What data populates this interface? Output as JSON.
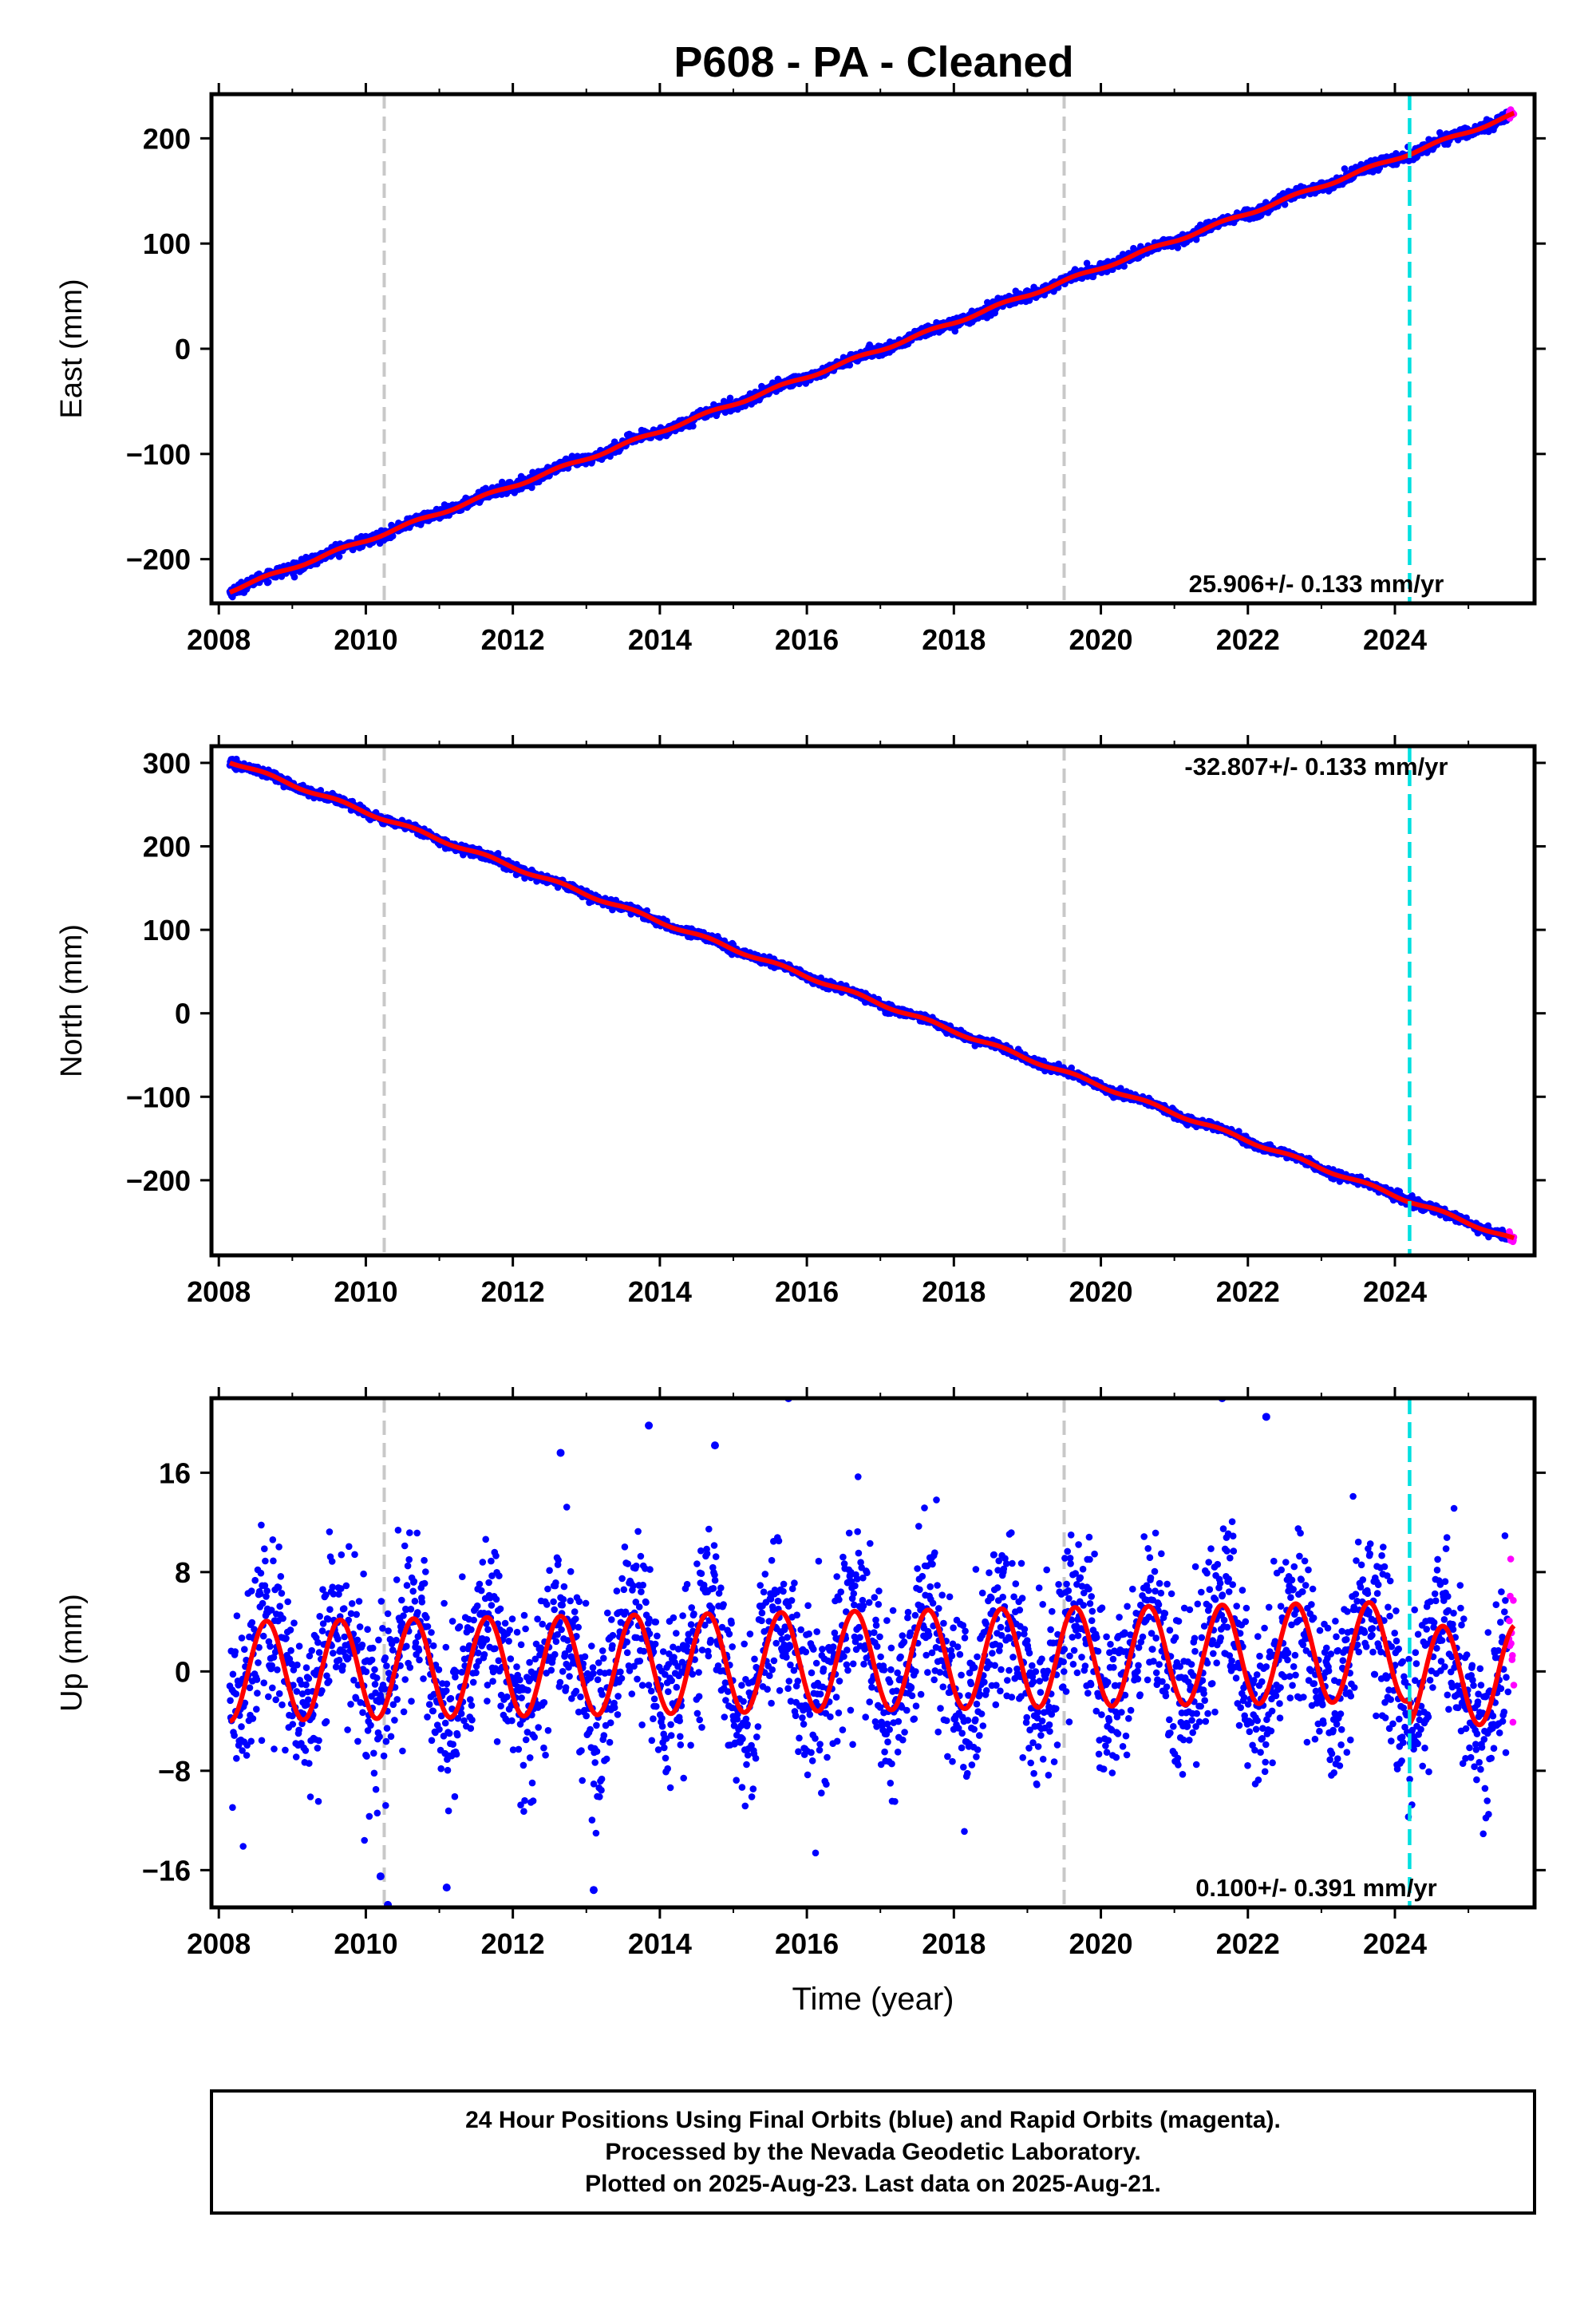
{
  "title": "P608  - PA - Cleaned",
  "colors": {
    "final_points": "#0000ff",
    "rapid_points": "#ff00ff",
    "model_line": "#ff0000",
    "event_line": "#c8c8c8",
    "antenna_line": "#00e0e0"
  },
  "chart_data": [
    {
      "type": "scatter",
      "name": "east",
      "ylabel": "East (mm)",
      "xlabel": "",
      "xlim": [
        2007.9,
        2025.9
      ],
      "ylim": [
        -242,
        242
      ],
      "xticks": [
        2008,
        2010,
        2012,
        2014,
        2016,
        2018,
        2020,
        2022,
        2024
      ],
      "xtick_labels": [
        "2008",
        "2010",
        "2012",
        "2014",
        "2016",
        "2018",
        "2020",
        "2022",
        "2024"
      ],
      "yticks": [
        -200,
        -100,
        0,
        100,
        200
      ],
      "ytick_labels": [
        "−200",
        "−100",
        "0",
        "100",
        "200"
      ],
      "rate_text": "25.906+/- 0.133 mm/yr",
      "rate_position": "bottom-right",
      "start": 2008.15,
      "end": 2025.62,
      "rapid_from": 2025.55,
      "y_start": -230,
      "slope": 25.906,
      "annual_amplitude": 1.5,
      "step_at_2024": 0,
      "noise": 2.5,
      "outliers": [],
      "event_lines": [
        2010.25,
        2019.5
      ],
      "antenna_lines": [
        2024.2
      ]
    },
    {
      "type": "scatter",
      "name": "north",
      "ylabel": "North (mm)",
      "xlabel": "",
      "xlim": [
        2007.9,
        2025.9
      ],
      "ylim": [
        -290,
        320
      ],
      "xticks": [
        2008,
        2010,
        2012,
        2014,
        2016,
        2018,
        2020,
        2022,
        2024
      ],
      "xtick_labels": [
        "2008",
        "2010",
        "2012",
        "2014",
        "2016",
        "2018",
        "2020",
        "2022",
        "2024"
      ],
      "yticks": [
        -200,
        -100,
        0,
        100,
        200,
        300
      ],
      "ytick_labels": [
        "−200",
        "−100",
        "0",
        "100",
        "200",
        "300"
      ],
      "rate_text": "-32.807+/- 0.133 mm/yr",
      "rate_position": "top-right",
      "start": 2008.15,
      "end": 2025.62,
      "rapid_from": 2025.55,
      "y_start": 302,
      "slope": -32.807,
      "annual_amplitude": 2,
      "step_at_2024": 0,
      "noise": 2.5,
      "outliers": [],
      "event_lines": [
        2010.25,
        2019.5
      ],
      "antenna_lines": [
        2024.2
      ]
    },
    {
      "type": "scatter",
      "name": "up",
      "ylabel": "Up (mm)",
      "xlabel": "Time (year)",
      "xlim": [
        2007.9,
        2025.9
      ],
      "ylim": [
        -19,
        22
      ],
      "xticks": [
        2008,
        2010,
        2012,
        2014,
        2016,
        2018,
        2020,
        2022,
        2024
      ],
      "xtick_labels": [
        "2008",
        "2010",
        "2012",
        "2014",
        "2016",
        "2018",
        "2020",
        "2022",
        "2024"
      ],
      "yticks": [
        -16,
        -8,
        0,
        8,
        16
      ],
      "ytick_labels": [
        "−16",
        "−8",
        "0",
        "8",
        "16"
      ],
      "rate_text": "0.100+/- 0.391 mm/yr",
      "rate_position": "bottom-right",
      "start": 2008.15,
      "end": 2025.62,
      "rapid_from": 2025.55,
      "y_start": 0,
      "slope": 0.1,
      "annual_amplitude": 4,
      "step_at_2024": -2,
      "noise": 3.5,
      "outliers": [
        [
          2015.75,
          22
        ],
        [
          2021.65,
          22
        ],
        [
          2022.25,
          20.5
        ],
        [
          2013.85,
          19.8
        ],
        [
          2014.75,
          18.2
        ],
        [
          2012.65,
          17.6
        ],
        [
          2010.3,
          -18.8
        ],
        [
          2011.1,
          -17.4
        ],
        [
          2013.1,
          -17.6
        ],
        [
          2010.2,
          -16.5
        ]
      ],
      "event_lines": [
        2010.25,
        2019.5
      ],
      "antenna_lines": [
        2024.2
      ]
    }
  ],
  "footer": {
    "line1": "24 Hour Positions Using Final Orbits (blue) and Rapid Orbits (magenta).",
    "line2": "Processed by the Nevada Geodetic Laboratory.",
    "line3": "Plotted on 2025-Aug-23. Last data on 2025-Aug-21."
  }
}
